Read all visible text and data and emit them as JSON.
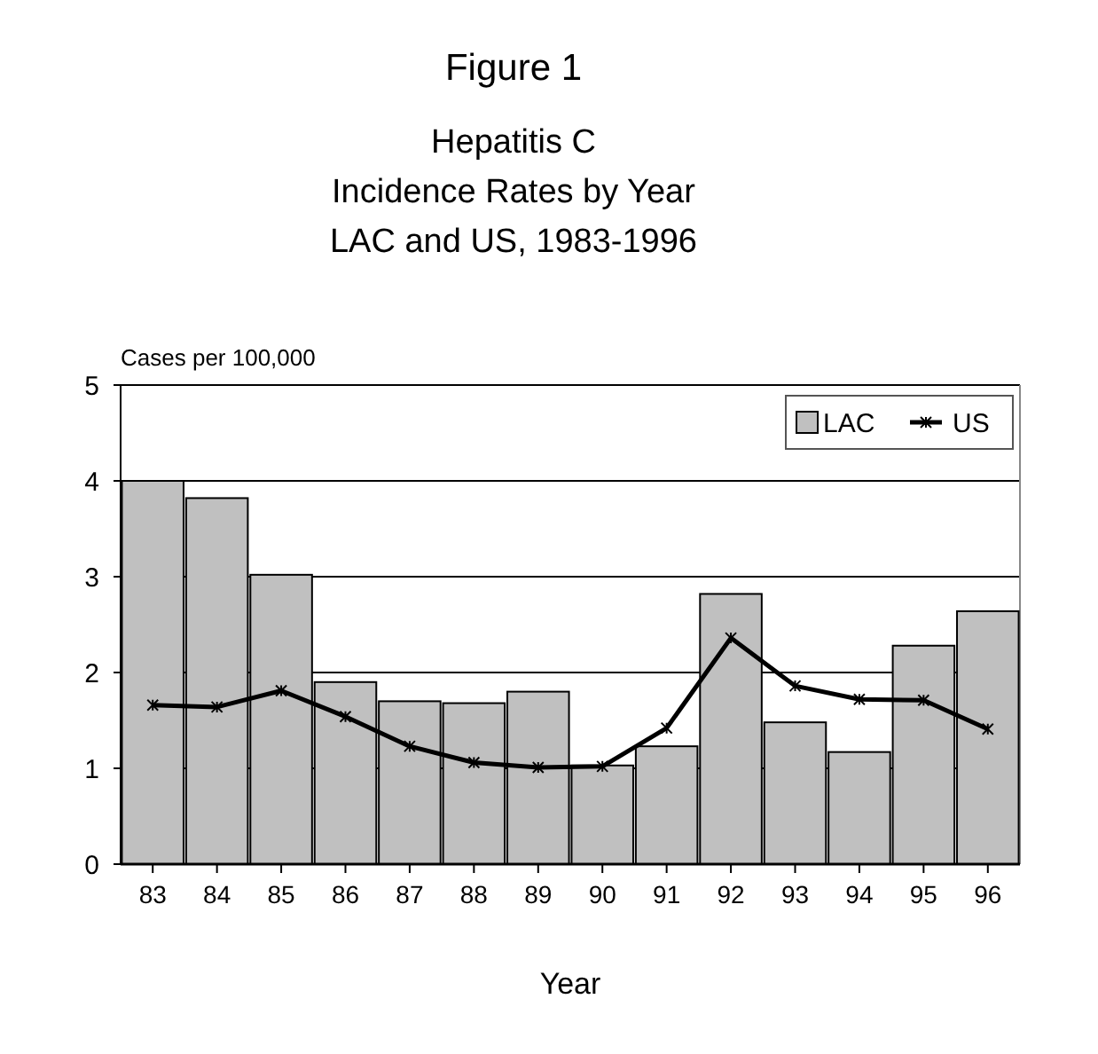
{
  "chart_data": {
    "type": "bar",
    "title": "Figure 1",
    "subtitle": "Hepatitis C\nIncidence Rates by Year\nLAC and US, 1983-1996",
    "xlabel": "Year",
    "ylabel": "Cases per 100,000",
    "categories": [
      "83",
      "84",
      "85",
      "86",
      "87",
      "88",
      "89",
      "90",
      "91",
      "92",
      "93",
      "94",
      "95",
      "96"
    ],
    "series": [
      {
        "name": "LAC",
        "color": "#c0c0c0",
        "values": [
          4.0,
          3.82,
          3.02,
          1.9,
          1.7,
          1.68,
          1.8,
          1.03,
          1.23,
          2.82,
          1.48,
          1.17,
          2.28,
          2.64
        ]
      },
      {
        "name": "US",
        "type": "line",
        "color": "#000000",
        "values": [
          1.66,
          1.64,
          1.81,
          1.54,
          1.23,
          1.06,
          1.01,
          1.02,
          1.42,
          2.36,
          1.86,
          1.72,
          1.71,
          1.41
        ]
      }
    ],
    "ylim": [
      0,
      5
    ],
    "yticks": [
      0,
      1,
      2,
      3,
      4,
      5
    ],
    "grid": "y",
    "legend": "top right",
    "marker": "cross"
  }
}
